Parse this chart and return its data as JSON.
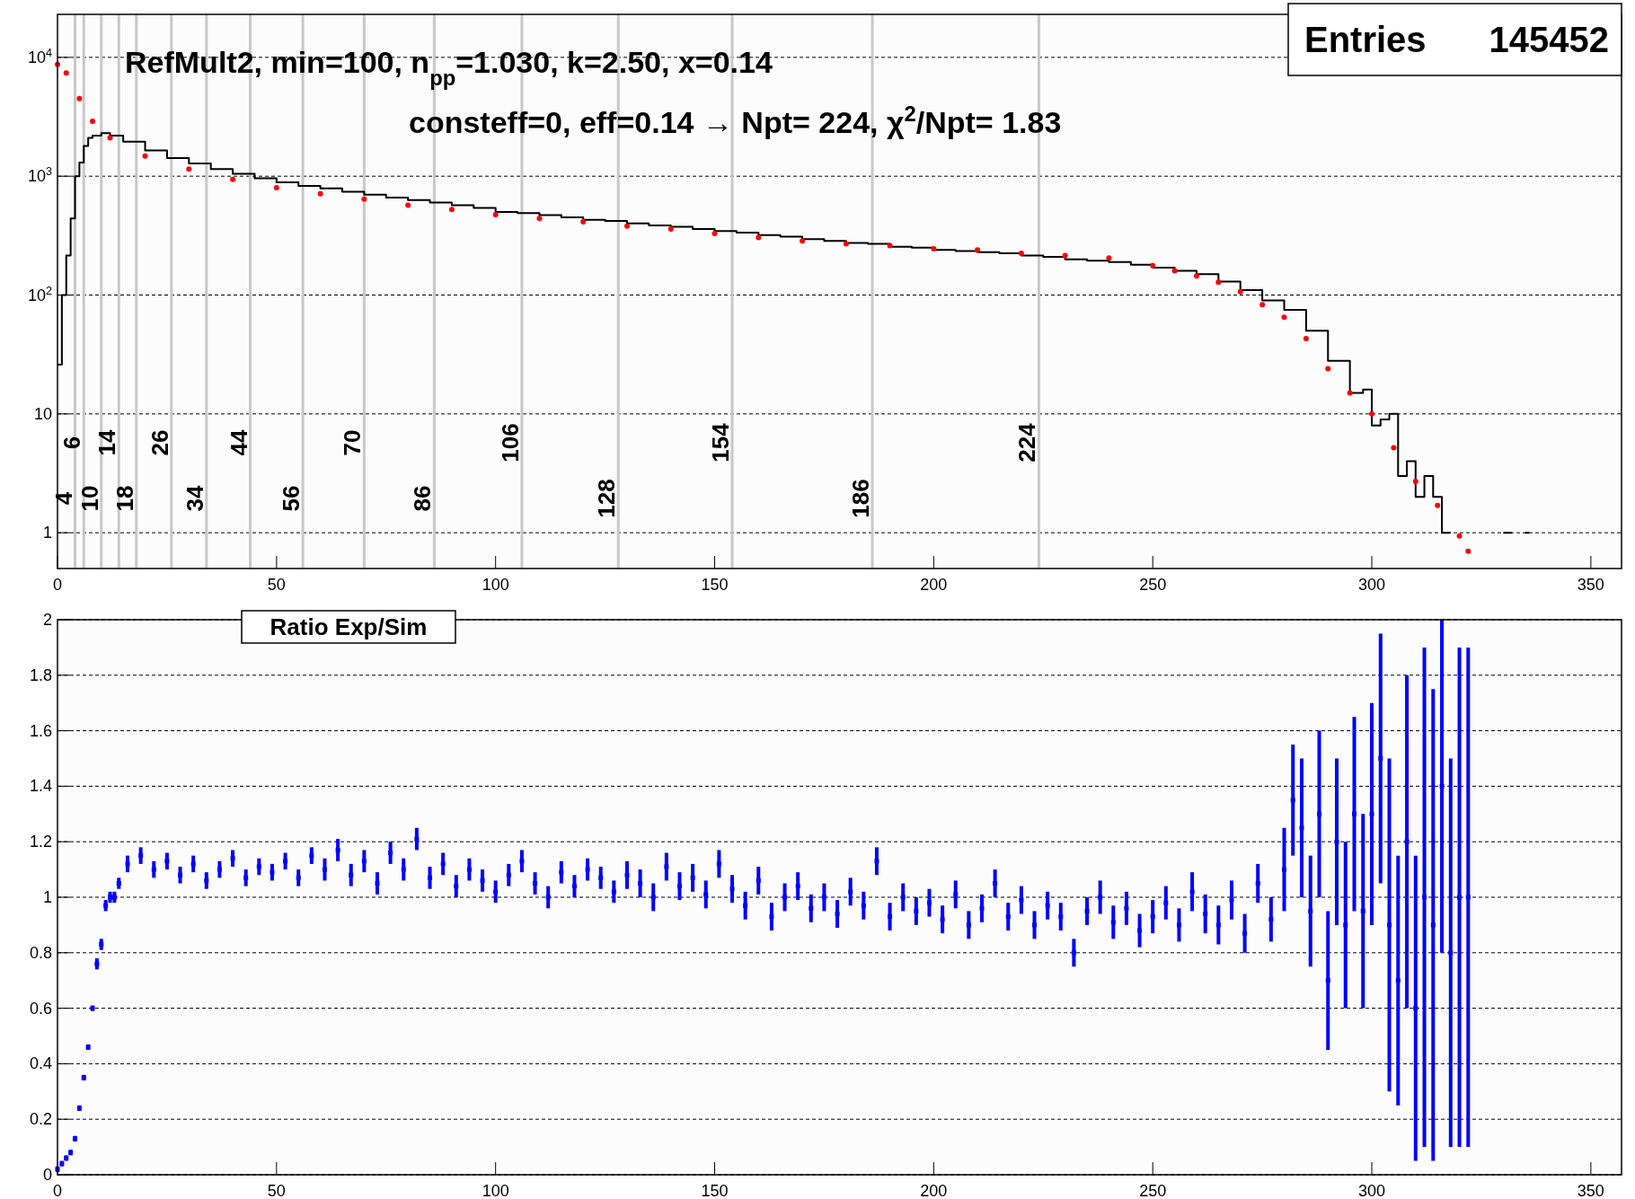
{
  "chart_data": [
    {
      "type": "step",
      "xlim": [
        0,
        357
      ],
      "ylim": [
        0.5,
        23000
      ],
      "log": "y",
      "grid": "y",
      "xticks": [
        0,
        50,
        100,
        150,
        200,
        250,
        300,
        350
      ],
      "yticks": [
        1,
        10,
        {
          "value": 100,
          "label": "10$^{2}$"
        },
        {
          "value": 1000,
          "label": "10$^{3}$"
        },
        {
          "value": 10000,
          "label": "10$^{4}$"
        }
      ],
      "annotations": [
        "RefMult2, min=100, n$_{pp}$=1.030, k=2.50, x=0.14",
        "consteff=0, eff=0.14 → Npt= 224, χ$^{2}$/Npt= 1.83",
        "Entries 145452"
      ],
      "ref_lines": [
        {
          "axis": "x",
          "value": 4,
          "label": "4",
          "color": "#c8c8c8"
        },
        {
          "axis": "x",
          "value": 6,
          "label": "6",
          "color": "#c8c8c8"
        },
        {
          "axis": "x",
          "value": 10,
          "label": "10",
          "color": "#c8c8c8"
        },
        {
          "axis": "x",
          "value": 14,
          "label": "14",
          "color": "#c8c8c8"
        },
        {
          "axis": "x",
          "value": 18,
          "label": "18",
          "color": "#c8c8c8"
        },
        {
          "axis": "x",
          "value": 26,
          "label": "26",
          "color": "#c8c8c8"
        },
        {
          "axis": "x",
          "value": 34,
          "label": "34",
          "color": "#c8c8c8"
        },
        {
          "axis": "x",
          "value": 44,
          "label": "44",
          "color": "#c8c8c8"
        },
        {
          "axis": "x",
          "value": 56,
          "label": "56",
          "color": "#c8c8c8"
        },
        {
          "axis": "x",
          "value": 70,
          "label": "70",
          "color": "#c8c8c8"
        },
        {
          "axis": "x",
          "value": 86,
          "label": "86",
          "color": "#c8c8c8"
        },
        {
          "axis": "x",
          "value": 106,
          "label": "106",
          "color": "#c8c8c8"
        },
        {
          "axis": "x",
          "value": 128,
          "label": "128",
          "color": "#c8c8c8"
        },
        {
          "axis": "x",
          "value": 154,
          "label": "154",
          "color": "#c8c8c8"
        },
        {
          "axis": "x",
          "value": 186,
          "label": "186",
          "color": "#c8c8c8"
        },
        {
          "axis": "x",
          "value": 224,
          "label": "224",
          "color": "#c8c8c8"
        }
      ],
      "series": [
        {
          "color": "#000000",
          "marker": "none",
          "x": [
            0,
            1,
            2,
            3,
            4,
            5,
            6,
            7,
            8,
            10,
            12,
            15,
            20,
            25,
            30,
            35,
            40,
            45,
            50,
            55,
            60,
            65,
            70,
            75,
            80,
            85,
            90,
            95,
            100,
            105,
            110,
            115,
            120,
            125,
            130,
            135,
            140,
            145,
            150,
            155,
            160,
            165,
            170,
            175,
            180,
            185,
            190,
            195,
            200,
            205,
            210,
            215,
            220,
            225,
            230,
            235,
            240,
            245,
            250,
            255,
            260,
            265,
            270,
            275,
            280,
            285,
            290,
            295,
            298,
            300,
            302,
            304,
            306,
            308,
            310,
            312,
            314,
            316,
            318,
            320,
            330,
            332,
            333,
            335,
            336
          ],
          "values": [
            26,
            100,
            215,
            440,
            1000,
            1300,
            1800,
            2100,
            2200,
            2300,
            2200,
            1950,
            1650,
            1420,
            1280,
            1150,
            1050,
            960,
            890,
            830,
            790,
            740,
            700,
            660,
            630,
            600,
            570,
            540,
            500,
            490,
            470,
            450,
            430,
            420,
            400,
            385,
            375,
            360,
            345,
            335,
            320,
            310,
            295,
            285,
            275,
            270,
            255,
            250,
            240,
            235,
            230,
            225,
            215,
            210,
            200,
            195,
            190,
            180,
            170,
            160,
            150,
            130,
            110,
            90,
            75,
            50,
            28,
            15,
            16,
            8,
            9,
            10,
            3,
            4,
            2,
            3,
            2,
            1,
            1,
            null,
            1,
            1,
            null,
            1,
            1
          ]
        },
        {
          "type": "scatter",
          "color": "#ff0000",
          "marker": "circle",
          "x": [
            0,
            2,
            5,
            8,
            12,
            20,
            30,
            40,
            50,
            60,
            70,
            80,
            90,
            100,
            110,
            120,
            130,
            140,
            150,
            160,
            170,
            180,
            190,
            200,
            210,
            220,
            230,
            240,
            250,
            255,
            260,
            265,
            270,
            275,
            280,
            285,
            290,
            295,
            300,
            305,
            310,
            315,
            320,
            322
          ],
          "values": [
            8700,
            7400,
            4500,
            2900,
            2100,
            1480,
            1150,
            940,
            800,
            710,
            640,
            570,
            525,
            475,
            440,
            413,
            380,
            360,
            330,
            305,
            285,
            270,
            260,
            245,
            240,
            225,
            215,
            205,
            177,
            160,
            145,
            128,
            107,
            83,
            65,
            43,
            24,
            15,
            10,
            5.2,
            2.7,
            1.7,
            0.94,
            0.7
          ]
        }
      ]
    },
    {
      "type": "scatter",
      "title": "Ratio Exp/Sim",
      "xlim": [
        0,
        357
      ],
      "ylim": [
        0,
        2
      ],
      "grid": "y",
      "marker": "square",
      "xticks": [
        0,
        50,
        100,
        150,
        200,
        250,
        300,
        350
      ],
      "yticks": [
        0,
        0.2,
        0.4,
        0.6,
        0.8,
        1,
        1.2,
        1.4,
        1.6,
        1.8,
        2
      ],
      "series": [
        {
          "color": "#0000ff",
          "x": [
            0,
            1,
            2,
            3,
            4,
            5,
            6,
            7,
            8,
            9,
            10,
            11,
            12,
            13,
            14,
            16,
            19,
            22,
            25,
            28,
            31,
            34,
            37,
            40,
            43,
            46,
            49,
            52,
            55,
            58,
            61,
            64,
            67,
            70,
            73,
            76,
            79,
            82,
            85,
            88,
            91,
            94,
            97,
            100,
            103,
            106,
            109,
            112,
            115,
            118,
            121,
            124,
            127,
            130,
            133,
            136,
            139,
            142,
            145,
            148,
            151,
            154,
            157,
            160,
            163,
            166,
            169,
            172,
            175,
            178,
            181,
            184,
            187,
            190,
            193,
            196,
            199,
            202,
            205,
            208,
            211,
            214,
            217,
            220,
            223,
            226,
            229,
            232,
            235,
            238,
            241,
            244,
            247,
            250,
            253,
            256,
            259,
            262,
            265,
            268,
            271,
            274,
            277,
            280,
            282,
            284,
            286,
            288,
            290,
            292,
            294,
            296,
            298,
            300,
            302,
            304,
            306,
            308,
            310,
            312,
            314,
            316,
            318,
            320,
            322
          ],
          "values": [
            0.02,
            0.04,
            0.06,
            0.08,
            0.13,
            0.24,
            0.35,
            0.46,
            0.6,
            0.76,
            0.83,
            0.97,
            1.0,
            1.0,
            1.05,
            1.12,
            1.15,
            1.1,
            1.13,
            1.08,
            1.12,
            1.06,
            1.1,
            1.14,
            1.07,
            1.11,
            1.09,
            1.13,
            1.07,
            1.15,
            1.1,
            1.17,
            1.08,
            1.13,
            1.05,
            1.16,
            1.1,
            1.21,
            1.07,
            1.12,
            1.04,
            1.1,
            1.06,
            1.02,
            1.08,
            1.13,
            1.05,
            1.0,
            1.09,
            1.04,
            1.1,
            1.07,
            1.02,
            1.08,
            1.05,
            1.0,
            1.11,
            1.04,
            1.07,
            1.01,
            1.12,
            1.03,
            0.97,
            1.06,
            0.93,
            1.0,
            1.04,
            0.96,
            1.0,
            0.94,
            1.02,
            0.97,
            1.13,
            0.93,
            1.0,
            0.95,
            0.98,
            0.92,
            1.01,
            0.9,
            0.96,
            1.05,
            0.93,
            0.99,
            0.9,
            0.97,
            0.93,
            0.8,
            0.95,
            1.0,
            0.91,
            0.96,
            0.88,
            0.93,
            0.98,
            0.9,
            1.02,
            0.94,
            0.9,
            0.99,
            0.87,
            1.05,
            0.92,
            1.1,
            1.35,
            1.25,
            0.95,
            1.3,
            0.7,
            1.2,
            0.9,
            1.3,
            0.95,
            1.3,
            1.5,
            0.9,
            0.7,
            1.2,
            0.6,
            1.0,
            0.9,
            1.4,
            0.8,
            1.0,
            1.0
          ],
          "errors": [
            0.01,
            0.01,
            0.01,
            0.01,
            0.01,
            0.01,
            0.01,
            0.01,
            0.01,
            0.02,
            0.02,
            0.02,
            0.02,
            0.02,
            0.02,
            0.03,
            0.03,
            0.03,
            0.03,
            0.03,
            0.03,
            0.03,
            0.03,
            0.03,
            0.03,
            0.03,
            0.03,
            0.03,
            0.03,
            0.03,
            0.04,
            0.04,
            0.04,
            0.04,
            0.04,
            0.04,
            0.04,
            0.04,
            0.04,
            0.04,
            0.04,
            0.04,
            0.04,
            0.04,
            0.04,
            0.04,
            0.04,
            0.04,
            0.04,
            0.04,
            0.04,
            0.04,
            0.04,
            0.05,
            0.05,
            0.05,
            0.05,
            0.05,
            0.05,
            0.05,
            0.05,
            0.05,
            0.05,
            0.05,
            0.05,
            0.05,
            0.05,
            0.05,
            0.05,
            0.05,
            0.05,
            0.05,
            0.05,
            0.05,
            0.05,
            0.05,
            0.05,
            0.05,
            0.05,
            0.05,
            0.05,
            0.05,
            0.05,
            0.05,
            0.05,
            0.05,
            0.05,
            0.05,
            0.05,
            0.06,
            0.06,
            0.06,
            0.06,
            0.06,
            0.06,
            0.06,
            0.07,
            0.07,
            0.07,
            0.07,
            0.07,
            0.07,
            0.08,
            0.15,
            0.2,
            0.25,
            0.2,
            0.3,
            0.25,
            0.3,
            0.3,
            0.35,
            0.35,
            0.4,
            0.45,
            0.6,
            0.45,
            0.6,
            0.55,
            0.9,
            0.85,
            0.6,
            0.7,
            0.9,
            0.9
          ]
        }
      ]
    }
  ]
}
